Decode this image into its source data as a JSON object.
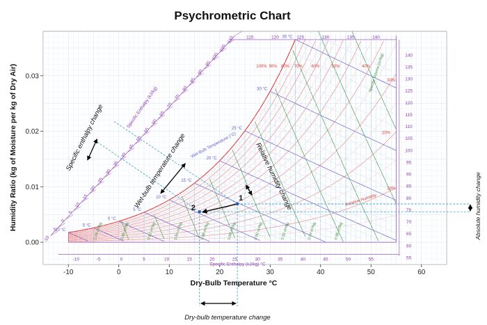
{
  "chart_data": {
    "type": "line",
    "title": "Psychrometric Chart",
    "xlabel": "Dry-Bulb Temperature °C",
    "ylabel": "Humidity Ratio (kg of Moisture per kg of Dry Air)",
    "xlim": [
      -15,
      65
    ],
    "ylim": [
      -0.004,
      0.038
    ],
    "x_ticks": [
      "-10",
      "0",
      "10",
      "20",
      "30",
      "40",
      "50",
      "60"
    ],
    "y_ticks": [
      "0.00",
      "0.01",
      "0.02",
      "0.03"
    ],
    "grid": true,
    "relative_humidity_labels": [
      "100%",
      "90%",
      "80%",
      "70%",
      "60%",
      "50%",
      "40%",
      "30%",
      "20%",
      "10%"
    ],
    "relative_humidity_title": "Relative Humidity",
    "wet_bulb_labels": [
      "10 °C",
      "5 °C",
      "0 °C",
      "5 °C",
      "10 °C",
      "15 °C",
      "20 °C",
      "25 °C",
      "30 °C",
      "35 °C"
    ],
    "wet_bulb_title": "Wet-Bulb Temperature (°C)",
    "specific_volume_labels": [
      "0.78 m³/kg",
      "0.80 m³/kg",
      "0.82 m³/kg",
      "0.84 m³/kg",
      "0.86 m³/kg",
      "0.88 m³/kg",
      "0.90 m³/kg",
      "0.92 m³/kg",
      "0.94 m³/kg",
      "0.96 m³/kg"
    ],
    "specific_volume_title": "Specific Volume (m³/kg)",
    "enthalpy_top_labels": [
      "-10",
      "-5",
      "0",
      "5",
      "10",
      "15",
      "20",
      "25",
      "30",
      "35",
      "40",
      "45",
      "50",
      "55",
      "60",
      "65",
      "70",
      "75",
      "80",
      "85",
      "90",
      "95",
      "100",
      "105",
      "110",
      "115",
      "120",
      "125",
      "130",
      "135",
      "140"
    ],
    "enthalpy_top_title": "Specific Enthalpy (kJ/kg)",
    "enthalpy_bottom_labels": [
      "-10",
      "-5",
      "0",
      "5",
      "10",
      "15",
      "20",
      "25",
      "30",
      "35",
      "40",
      "45",
      "50",
      "55"
    ],
    "enthalpy_bottom_title": "Specific Enthalpy (kJ/kg) °C",
    "enthalpy_right_labels": [
      "55",
      "60",
      "65",
      "70",
      "75",
      "80",
      "85",
      "90",
      "95",
      "100",
      "105",
      "110",
      "115",
      "120",
      "125",
      "130",
      "135",
      "140"
    ],
    "points": [
      {
        "label": "1",
        "x": 23.5,
        "y": 0.0069
      },
      {
        "label": "2",
        "x": 16,
        "y": 0.0055
      }
    ],
    "annotations": {
      "enthalpy_change": "Specific enthalpy change",
      "wet_bulb_change": "Wet-bulb temperature change",
      "rh_change": "Relative humidity change",
      "abs_humidity_change": "Absolute humidity change",
      "dry_bulb_change": "Dry-bulb temperature change"
    }
  }
}
